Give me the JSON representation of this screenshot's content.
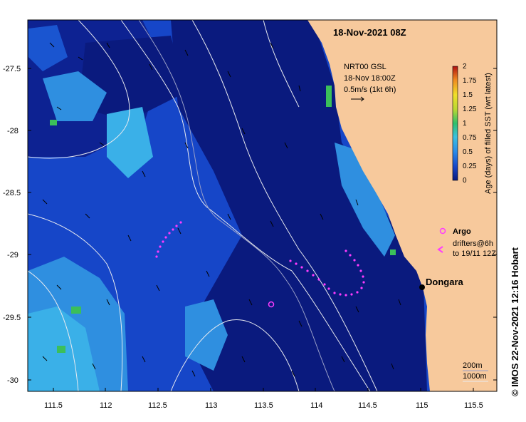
{
  "map": {
    "title": "18-Nov-2021 08Z",
    "credit": "© IMOS 22-Nov-2021 12:16 Hobart",
    "place": "Dongara",
    "x_ticks": [
      "111.5",
      "112",
      "112.5",
      "113",
      "113.5",
      "114",
      "114.5",
      "115",
      "115.5"
    ],
    "y_ticks": [
      "-27.5",
      "-28",
      "-28.5",
      "-29",
      "-29.5",
      "-30"
    ],
    "x_range_lon": [
      111.3,
      115.6
    ],
    "y_range_lat": [
      -27.1,
      -30.1
    ],
    "colors": {
      "land": "#f7c99c",
      "ocean_deep": "#0a1a7e",
      "ocean_mid": "#1646c8",
      "ocean_light": "#2f8fe0",
      "ocean_cyan": "#3ab0e8",
      "green": "#3bbf5a",
      "contour": "#e8eaf0",
      "drifter": "#ff3cff"
    }
  },
  "current_legend": {
    "line1": "NRT00 GSL",
    "line2": "18-Nov 18:00Z",
    "line3": "0.5m/s (1kt 6h)"
  },
  "colorbar": {
    "label": "Age (days) of filled SST (wrt latest)",
    "ticks": [
      "2",
      "1.75",
      "1.5",
      "1.25",
      "1",
      "0.75",
      "0.5",
      "0.25",
      "0"
    ],
    "range": [
      0,
      2
    ]
  },
  "symbols_legend": {
    "argo": "Argo",
    "drifters_line1": "drifters@6h",
    "drifters_line2": "to 19/11 12Z"
  },
  "depth_legend": {
    "line1": "200m",
    "line2": "1000m"
  }
}
